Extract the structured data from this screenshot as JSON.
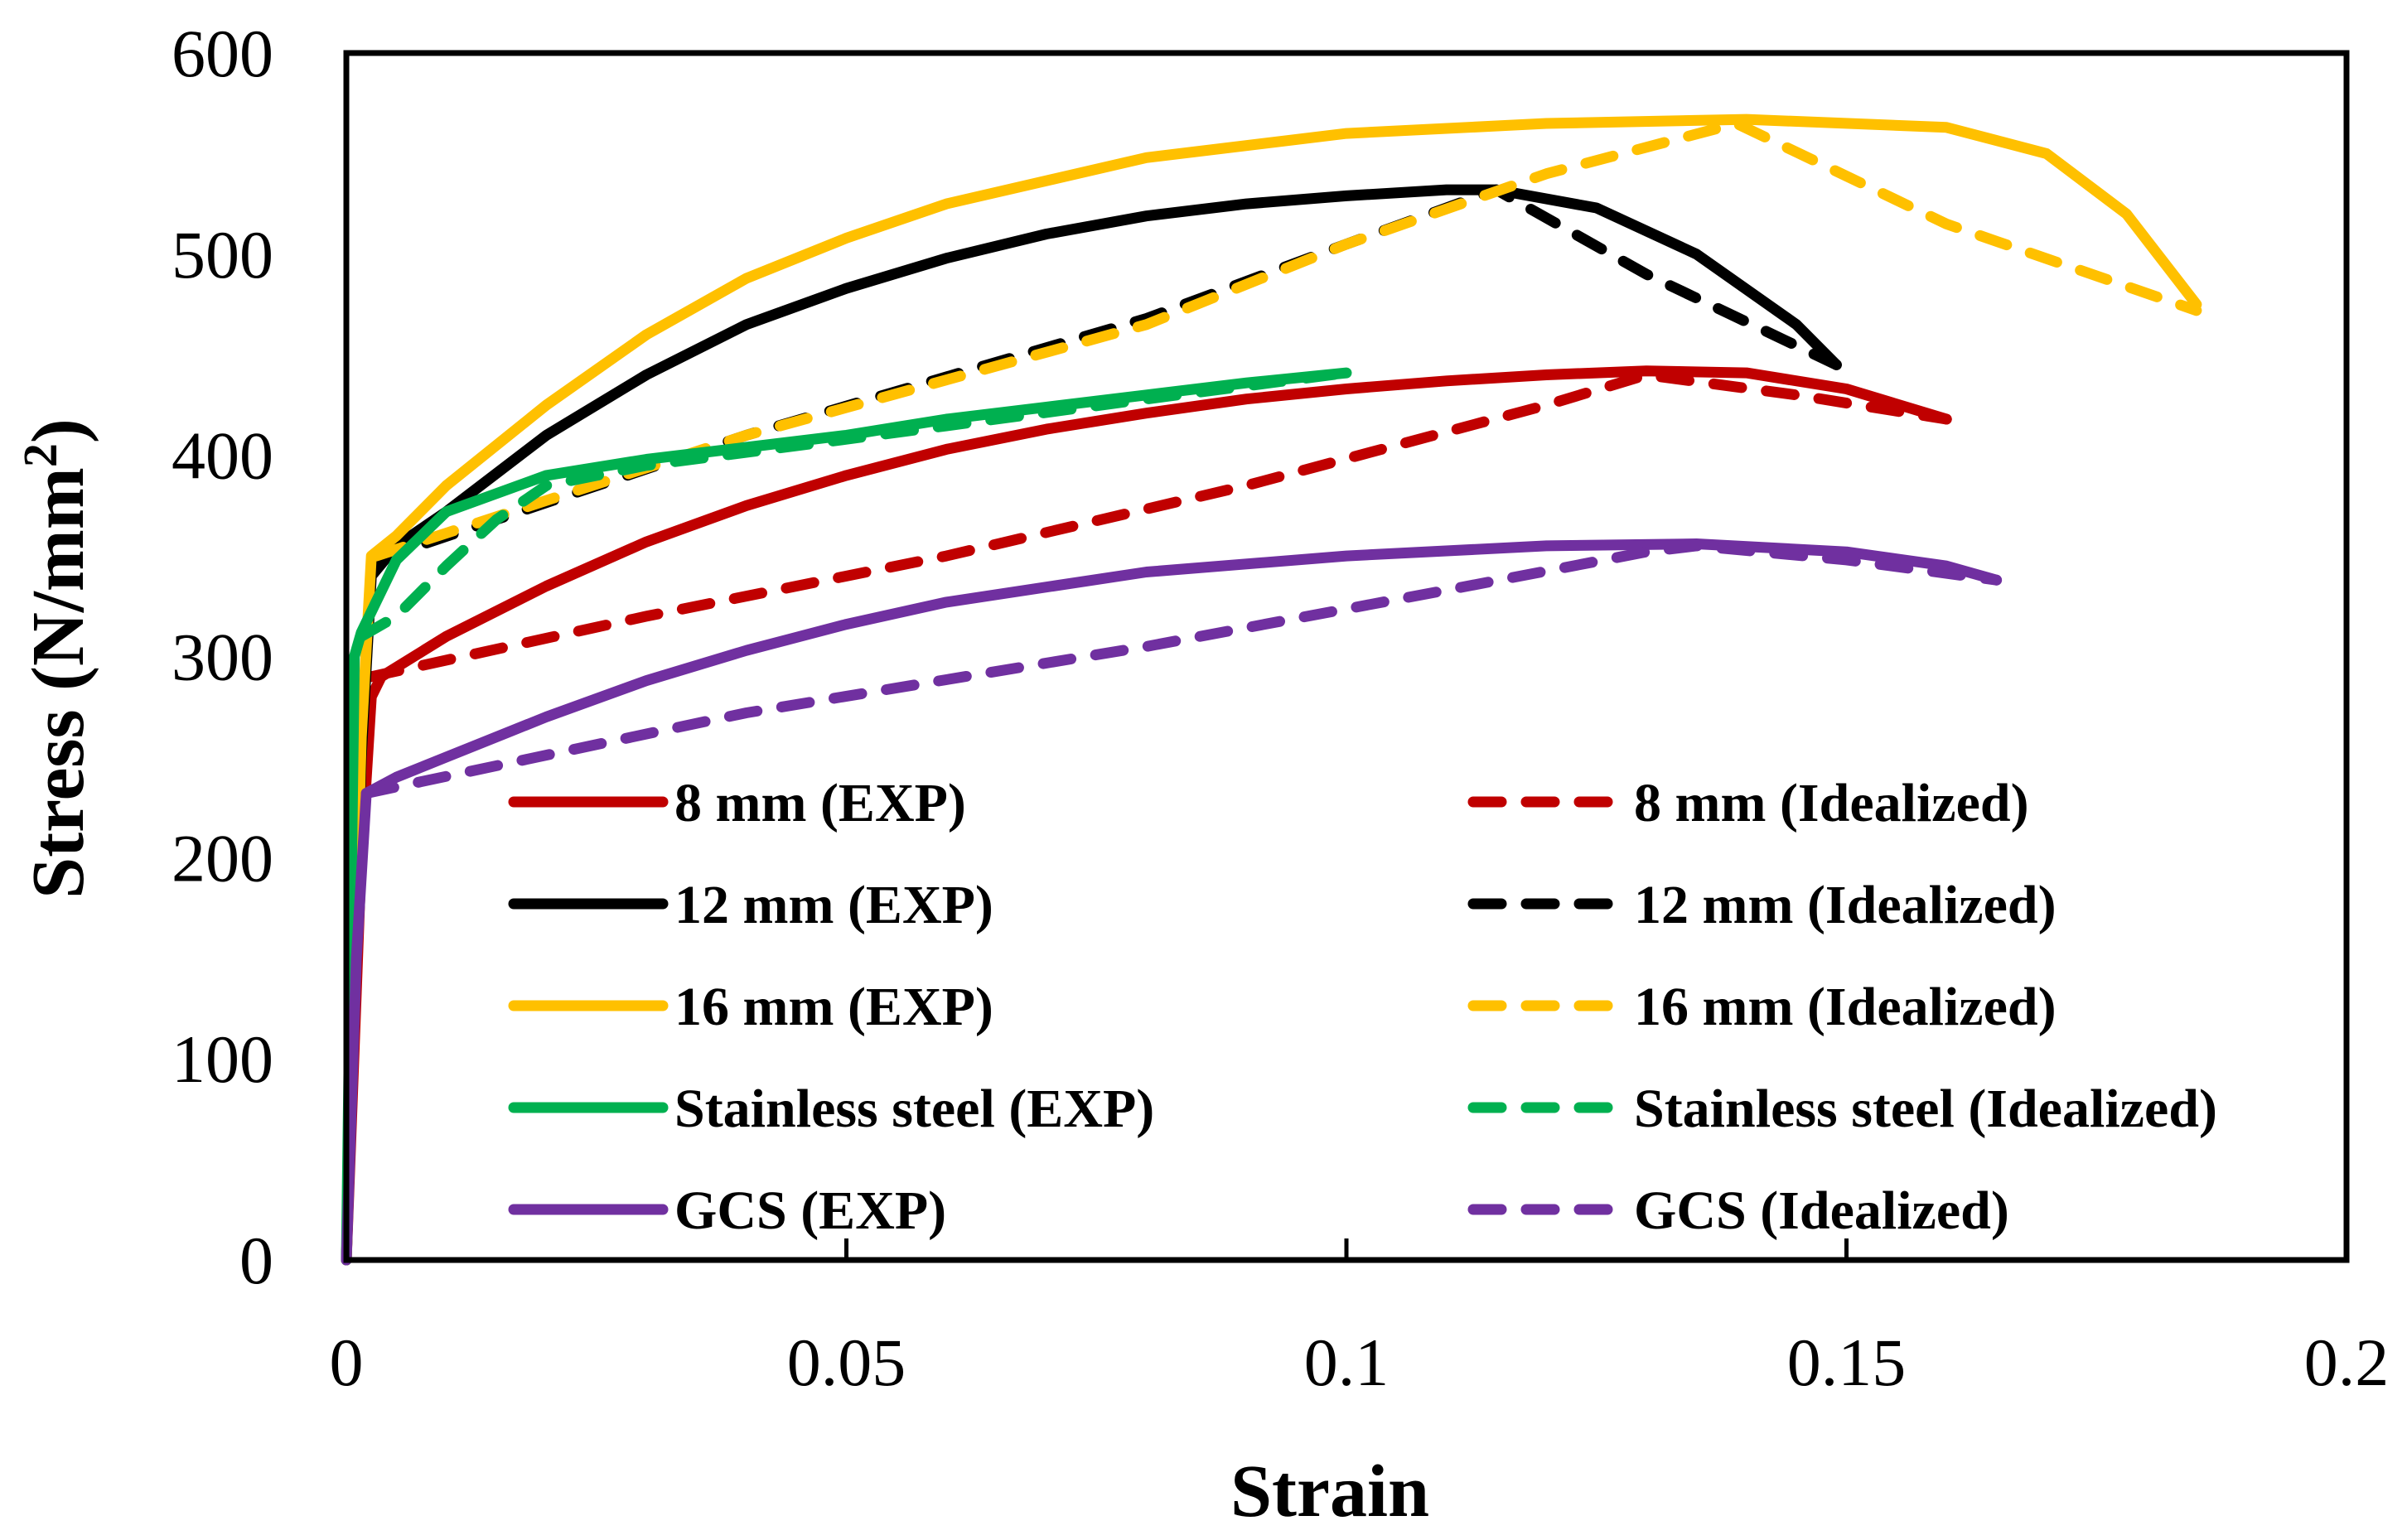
{
  "chart_data": {
    "type": "line",
    "title": "",
    "xlabel": "Strain",
    "ylabel": "Stress (N/mm",
    "ylabel_sup": "2",
    "ylabel_close": ")",
    "xlim": [
      0,
      0.2
    ],
    "ylim": [
      0,
      600
    ],
    "xticks": [
      {
        "value": 0,
        "label": "0"
      },
      {
        "value": 0.05,
        "label": "0.05"
      },
      {
        "value": 0.1,
        "label": "0.1"
      },
      {
        "value": 0.15,
        "label": "0.15"
      },
      {
        "value": 0.2,
        "label": "0.2"
      }
    ],
    "yticks": [
      {
        "value": 0,
        "label": "0"
      },
      {
        "value": 100,
        "label": "100"
      },
      {
        "value": 200,
        "label": "200"
      },
      {
        "value": 300,
        "label": "300"
      },
      {
        "value": 400,
        "label": "400"
      },
      {
        "value": 500,
        "label": "500"
      },
      {
        "value": 600,
        "label": "600"
      }
    ],
    "grid": false,
    "legend_position": "lower-center, two columns",
    "series": [
      {
        "name": "8 mm (EXP)",
        "color": "#C00000",
        "style": "solid",
        "x": [
          0,
          0.0015,
          0.0025,
          0.0035,
          0.01,
          0.02,
          0.03,
          0.04,
          0.05,
          0.06,
          0.07,
          0.08,
          0.09,
          0.1,
          0.11,
          0.12,
          0.13,
          0.14,
          0.15,
          0.16
        ],
        "y": [
          0,
          200,
          280,
          290,
          310,
          335,
          357,
          375,
          390,
          403,
          413,
          421,
          428,
          433,
          437,
          440,
          442,
          441,
          433,
          418
        ]
      },
      {
        "name": "8 mm (Idealized)",
        "color": "#C00000",
        "style": "dashed",
        "x": [
          0.0025,
          0.03,
          0.06,
          0.09,
          0.12,
          0.13,
          0.145,
          0.16
        ],
        "y": [
          290,
          320,
          350,
          385,
          425,
          440,
          430,
          418
        ]
      },
      {
        "name": "12 mm (EXP)",
        "color": "#000000",
        "style": "solid",
        "x": [
          0,
          0.0015,
          0.0025,
          0.005,
          0.01,
          0.02,
          0.03,
          0.04,
          0.05,
          0.06,
          0.07,
          0.08,
          0.09,
          0.1,
          0.11,
          0.115,
          0.125,
          0.135,
          0.145,
          0.149
        ],
        "y": [
          0,
          250,
          340,
          355,
          372,
          410,
          440,
          465,
          483,
          498,
          510,
          519,
          525,
          529,
          532,
          532,
          523,
          500,
          465,
          445
        ]
      },
      {
        "name": "12 mm (Idealized)",
        "color": "#000000",
        "style": "dashed",
        "x": [
          0.003,
          0.04,
          0.08,
          0.1,
          0.115,
          0.13,
          0.149
        ],
        "y": [
          348,
          410,
          468,
          505,
          532,
          490,
          445
        ]
      },
      {
        "name": "16 mm (EXP)",
        "color": "#FFC000",
        "style": "solid",
        "x": [
          0,
          0.0015,
          0.0025,
          0.005,
          0.01,
          0.02,
          0.03,
          0.04,
          0.05,
          0.06,
          0.08,
          0.1,
          0.12,
          0.14,
          0.16,
          0.17,
          0.178,
          0.185
        ],
        "y": [
          0,
          260,
          350,
          360,
          385,
          425,
          460,
          488,
          508,
          525,
          548,
          560,
          565,
          567,
          563,
          550,
          520,
          475
        ]
      },
      {
        "name": "16 mm (Idealized)",
        "color": "#FFC000",
        "style": "dashed",
        "x": [
          0.003,
          0.04,
          0.08,
          0.1,
          0.12,
          0.139,
          0.16,
          0.185
        ],
        "y": [
          350,
          410,
          465,
          505,
          540,
          565,
          515,
          472
        ]
      },
      {
        "name": "Stainless steel (EXP)",
        "color": "#00B050",
        "style": "solid",
        "x": [
          0,
          0.0008,
          0.0015,
          0.005,
          0.01,
          0.02,
          0.03,
          0.04,
          0.05,
          0.06,
          0.07,
          0.08,
          0.09,
          0.1
        ],
        "y": [
          0,
          300,
          312,
          348,
          372,
          390,
          398,
          404,
          410,
          418,
          424,
          430,
          436,
          441
        ]
      },
      {
        "name": "Stainless steel (Idealized)",
        "color": "#00B050",
        "style": "dashed",
        "x": [
          0.0015,
          0.005,
          0.01,
          0.015,
          0.02,
          0.03,
          0.05,
          0.08,
          0.1
        ],
        "y": [
          310,
          320,
          345,
          368,
          385,
          395,
          408,
          428,
          441
        ]
      },
      {
        "name": "GCS (EXP)",
        "color": "#7030A0",
        "style": "solid",
        "x": [
          0,
          0.001,
          0.002,
          0.005,
          0.01,
          0.02,
          0.03,
          0.04,
          0.05,
          0.06,
          0.08,
          0.1,
          0.12,
          0.135,
          0.15,
          0.16,
          0.165
        ],
        "y": [
          0,
          150,
          232,
          240,
          250,
          270,
          288,
          303,
          316,
          327,
          342,
          350,
          355,
          356,
          352,
          345,
          338
        ]
      },
      {
        "name": "GCS (Idealized)",
        "color": "#7030A0",
        "style": "dashed",
        "x": [
          0.002,
          0.04,
          0.08,
          0.11,
          0.13,
          0.135,
          0.15,
          0.165
        ],
        "y": [
          232,
          272,
          305,
          333,
          352,
          355,
          348,
          338
        ]
      }
    ]
  }
}
